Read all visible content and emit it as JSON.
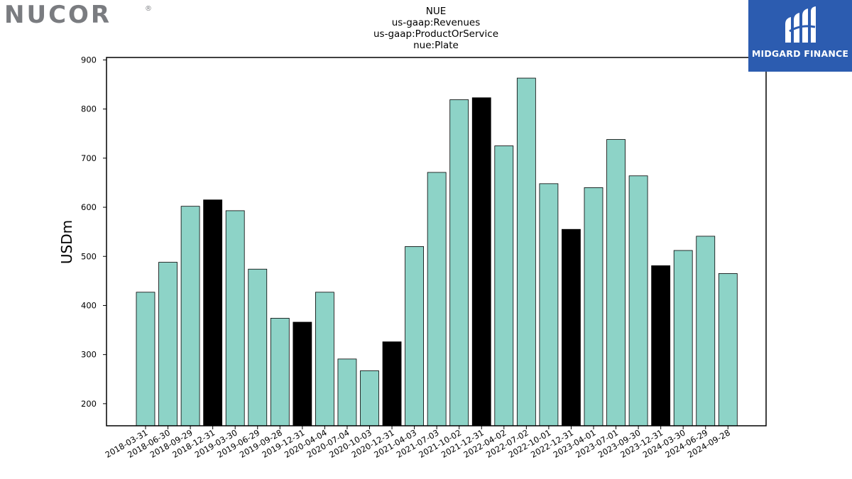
{
  "logos": {
    "left_text": "NUCOR",
    "left_mark": "®",
    "right_text": "MIDGARD FINANCE",
    "right_icon": "midgard-monogram-icon"
  },
  "colors": {
    "bar_default": "#8dd3c7",
    "bar_highlight": "#000000",
    "logo_left": "#7a7c80",
    "logo_right_bg": "#2c5cb0"
  },
  "chart_data": {
    "type": "bar",
    "title_lines": [
      "NUE",
      "us-gaap:Revenues",
      "us-gaap:ProductOrService",
      "nue:Plate"
    ],
    "xlabel": "",
    "ylabel": "USDm",
    "ylim": [
      155,
      905
    ],
    "yticks": [
      200,
      300,
      400,
      500,
      600,
      700,
      800,
      900
    ],
    "grid": false,
    "categories": [
      "2018-03-31",
      "2018-06-30",
      "2018-09-29",
      "2018-12-31",
      "2019-03-30",
      "2019-06-29",
      "2019-09-28",
      "2019-12-31",
      "2020-04-04",
      "2020-07-04",
      "2020-10-03",
      "2020-12-31",
      "2021-04-03",
      "2021-07-03",
      "2021-10-02",
      "2021-12-31",
      "2022-04-02",
      "2022-07-02",
      "2022-10-01",
      "2022-12-31",
      "2023-04-01",
      "2023-07-01",
      "2023-09-30",
      "2023-12-31",
      "2024-03-30",
      "2024-06-29",
      "2024-09-28"
    ],
    "values": [
      427,
      488,
      602,
      615,
      593,
      474,
      374,
      366,
      427,
      291,
      267,
      326,
      520,
      671,
      819,
      823,
      725,
      863,
      648,
      555,
      640,
      738,
      664,
      481,
      512,
      541,
      465
    ],
    "highlight": [
      false,
      false,
      false,
      true,
      false,
      false,
      false,
      true,
      false,
      false,
      false,
      true,
      false,
      false,
      false,
      true,
      false,
      false,
      false,
      true,
      false,
      false,
      false,
      true,
      false,
      false,
      false
    ]
  }
}
